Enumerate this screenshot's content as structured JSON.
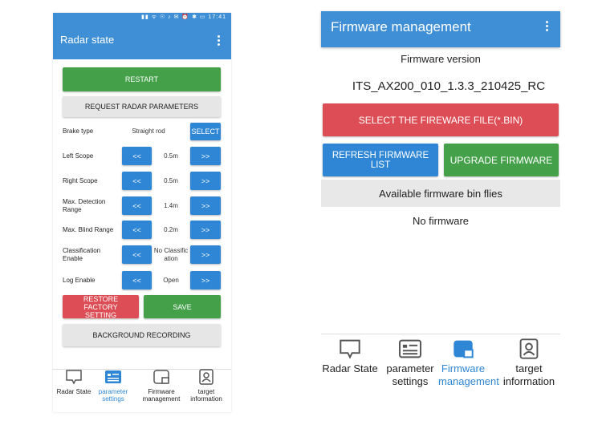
{
  "left": {
    "status_time": "17:41",
    "status_icons": "▮▮ ᯤ ☉ ♪ ✉ ⏰ ✱ ▭",
    "title": "Radar state",
    "restart": "RESTART",
    "request_params": "REQUEST RADAR PARAMETERS",
    "rows": [
      {
        "label": "Brake type",
        "value": "Straight rod",
        "action": "SELECT"
      },
      {
        "label": "Left Scope",
        "value": "0.5m",
        "dec": "<<",
        "inc": ">>"
      },
      {
        "label": "Right Scope",
        "value": "0.5m",
        "dec": "<<",
        "inc": ">>"
      },
      {
        "label": "Max. Detection Range",
        "value": "1.4m",
        "dec": "<<",
        "inc": ">>"
      },
      {
        "label": "Max. Blind Range",
        "value": "0.2m",
        "dec": "<<",
        "inc": ">>"
      },
      {
        "label": "Classification Enable",
        "value": "No Classification",
        "dec": "<<",
        "inc": ">>"
      },
      {
        "label": "Log Enable",
        "value": "Open",
        "dec": "<<",
        "inc": ">>"
      }
    ],
    "restore": "RESTORE FACTORY SETTING",
    "save": "SAVE",
    "background_recording": "BACKGROUND RECORDING",
    "nav": [
      {
        "label": "Radar State",
        "icon": "chat-icon"
      },
      {
        "label": "parameter settings",
        "icon": "list-card-icon",
        "active": true
      },
      {
        "label": "Firmware management",
        "icon": "firmware-icon"
      },
      {
        "label": "target information",
        "icon": "person-card-icon"
      }
    ]
  },
  "right": {
    "title": "Firmware management",
    "version_label": "Firmware version",
    "version_value": "ITS_AX200_010_1.3.3_210425_RC",
    "select_file": "SELECT THE FIREWARE FILE(*.BIN)",
    "refresh": "REFRESH FIRMWARE LIST",
    "upgrade": "UPGRADE FIRMWARE",
    "available": "Available firmware bin flies",
    "no_firmware": "No firmware",
    "nav": [
      {
        "label": "Radar State",
        "icon": "chat-icon"
      },
      {
        "label": "parameter settings",
        "icon": "list-card-icon"
      },
      {
        "label": "Firmware management",
        "icon": "firmware-icon",
        "active": true
      },
      {
        "label": "target information",
        "icon": "person-card-icon"
      }
    ]
  },
  "colors": {
    "primary": "#3f8fd6",
    "active_nav": "#2e86d4",
    "green": "#45a04a",
    "red": "#dc4d55",
    "gray": "#e6e6e6"
  }
}
